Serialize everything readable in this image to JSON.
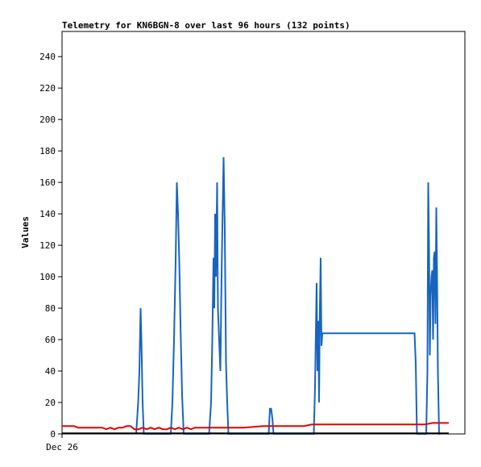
{
  "chart_data": {
    "type": "line",
    "title": "Telemetry for KN6BGN-8 over last 96 hours (132 points)",
    "xlabel": "",
    "ylabel": "Values",
    "x_tick_labels": [
      "Dec 26"
    ],
    "y_ticks": [
      0,
      20,
      40,
      60,
      80,
      100,
      120,
      140,
      160,
      180,
      200,
      220,
      240
    ],
    "xlim": [
      0,
      100
    ],
    "ylim": [
      0,
      256
    ],
    "grid": false,
    "legend": "none",
    "series": [
      {
        "color": "#1764c0",
        "x": [
          18.4,
          18.9,
          19.2,
          19.5,
          19.7,
          20.0,
          20.3,
          20.6,
          21.0,
          27.0,
          27.4,
          27.8,
          28.2,
          28.5,
          28.8,
          29.1,
          29.4,
          29.8,
          30.2,
          36.5,
          37.0,
          37.3,
          37.6,
          37.8,
          38.0,
          38.2,
          38.5,
          38.7,
          39.0,
          39.3,
          39.6,
          39.8,
          40.1,
          40.4,
          40.7,
          41.0,
          41.3,
          41.6,
          42.0,
          51.3,
          51.6,
          51.9,
          52.2,
          52.5,
          62.5,
          62.8,
          63.0,
          63.2,
          63.4,
          63.6,
          63.8,
          64.0,
          64.2,
          64.4,
          64.6,
          64.8,
          65.0,
          65.2,
          65.5,
          87.5,
          87.8,
          88.1,
          90.4,
          90.7,
          90.9,
          91.1,
          91.3,
          91.5,
          91.7,
          91.9,
          92.1,
          92.3,
          92.5,
          92.7,
          92.9,
          93.1,
          93.3,
          93.6,
          93.9
        ],
        "y": [
          0,
          20,
          40,
          80,
          60,
          20,
          0,
          0,
          0,
          0,
          20,
          60,
          110,
          160,
          140,
          110,
          70,
          25,
          0,
          0,
          20,
          60,
          112,
          80,
          140,
          100,
          160,
          80,
          60,
          40,
          100,
          132,
          176,
          130,
          45,
          20,
          0,
          0,
          0,
          0,
          16,
          16,
          10,
          0,
          0,
          30,
          64,
          96,
          40,
          72,
          20,
          80,
          112,
          56,
          64,
          64,
          64,
          64,
          64,
          64,
          45,
          0,
          0,
          40,
          160,
          120,
          50,
          88,
          100,
          104,
          60,
          112,
          116,
          70,
          144,
          100,
          40,
          0,
          0
        ]
      },
      {
        "color": "#e60000",
        "x": [
          0,
          3,
          4,
          7,
          9,
          10,
          11,
          12,
          13,
          14,
          15,
          16,
          17,
          18,
          19,
          20,
          21,
          22,
          23,
          24,
          25,
          26,
          27,
          28,
          29,
          30,
          31,
          32,
          33,
          35,
          40,
          45,
          50,
          55,
          60,
          62,
          65,
          70,
          75,
          80,
          85,
          88,
          90,
          92,
          94,
          96
        ],
        "y": [
          5,
          5,
          4,
          4,
          4,
          4,
          3,
          4,
          3,
          4,
          4,
          5,
          5,
          3,
          3,
          4,
          3,
          4,
          3,
          4,
          3,
          3,
          4,
          3,
          4,
          3,
          4,
          3,
          4,
          4,
          4,
          4,
          5,
          5,
          5,
          6,
          6,
          6,
          6,
          6,
          6,
          6,
          6,
          7,
          7,
          7
        ]
      },
      {
        "color": "#000000",
        "x": [
          0,
          96
        ],
        "y": [
          0.4,
          0.4
        ]
      }
    ]
  }
}
